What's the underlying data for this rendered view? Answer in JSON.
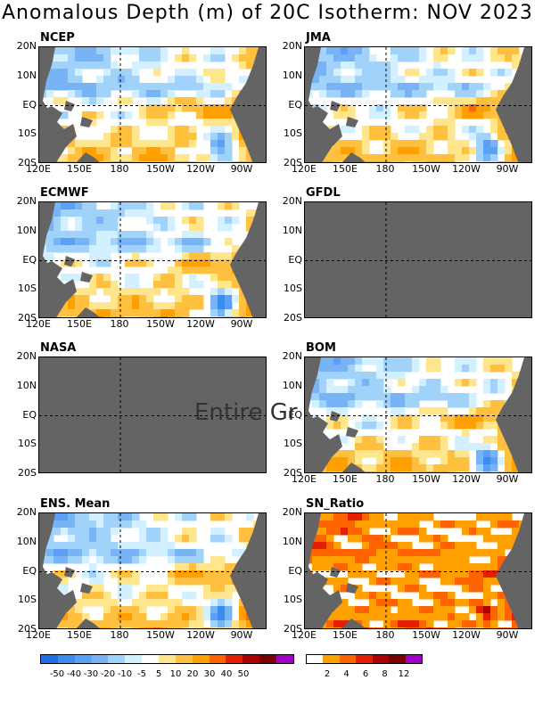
{
  "title": "Anomalous Depth (m) of 20C Isotherm: NOV 2023",
  "no_data_text": "Entire Gr",
  "axes": {
    "y_ticks": [
      "20N",
      "10N",
      "EQ",
      "10S",
      "20S"
    ],
    "x_ticks": [
      "120E",
      "150E",
      "180",
      "150W",
      "120W",
      "90W"
    ]
  },
  "panels": [
    {
      "label": "NCEP",
      "status": "data",
      "show_x_ticks": true
    },
    {
      "label": "JMA",
      "status": "data",
      "show_x_ticks": true
    },
    {
      "label": "ECMWF",
      "status": "data",
      "show_x_ticks": true
    },
    {
      "label": "GFDL",
      "status": "no-data",
      "show_x_ticks": false
    },
    {
      "label": "NASA",
      "status": "no-data",
      "show_x_ticks": false
    },
    {
      "label": "BOM",
      "status": "data",
      "show_x_ticks": true
    },
    {
      "label": "ENS. Mean",
      "status": "data",
      "show_x_ticks": true
    },
    {
      "label": "SN_Ratio",
      "status": "data",
      "show_x_ticks": true
    }
  ],
  "anomaly_colorbar": {
    "labels": [
      "-50",
      "-40",
      "-30",
      "-20",
      "-10",
      "-5",
      "5",
      "10",
      "20",
      "30",
      "40",
      "50"
    ],
    "colors": [
      "#1e6ee6",
      "#3c8cf0",
      "#5aa0f5",
      "#78b4f5",
      "#a0d2fa",
      "#d2f0ff",
      "#ffffff",
      "#ffe68c",
      "#ffc040",
      "#ffa000",
      "#ff6400",
      "#e61e00",
      "#aa0000",
      "#780000",
      "#a000c8"
    ]
  },
  "snr_colorbar": {
    "labels": [
      "2",
      "4",
      "6",
      "8",
      "12"
    ],
    "colors": [
      "#ffffff",
      "#ffa000",
      "#ff6400",
      "#e61e00",
      "#aa0000",
      "#780000",
      "#a000c8"
    ]
  },
  "colors": {
    "land": "#646464",
    "no_data_fill": "#646464"
  },
  "chart_data": {
    "type": "heatmap",
    "title": "Anomalous Depth (m) of 20C Isotherm: NOV 2023",
    "x_range": [
      "120E",
      "80W"
    ],
    "y_range": [
      "20S",
      "20N"
    ],
    "colorbar_levels": [
      -50,
      -40,
      -30,
      -20,
      -10,
      -5,
      5,
      10,
      20,
      30,
      40,
      50
    ],
    "snr_levels": [
      2,
      4,
      6,
      8,
      12
    ]
  }
}
